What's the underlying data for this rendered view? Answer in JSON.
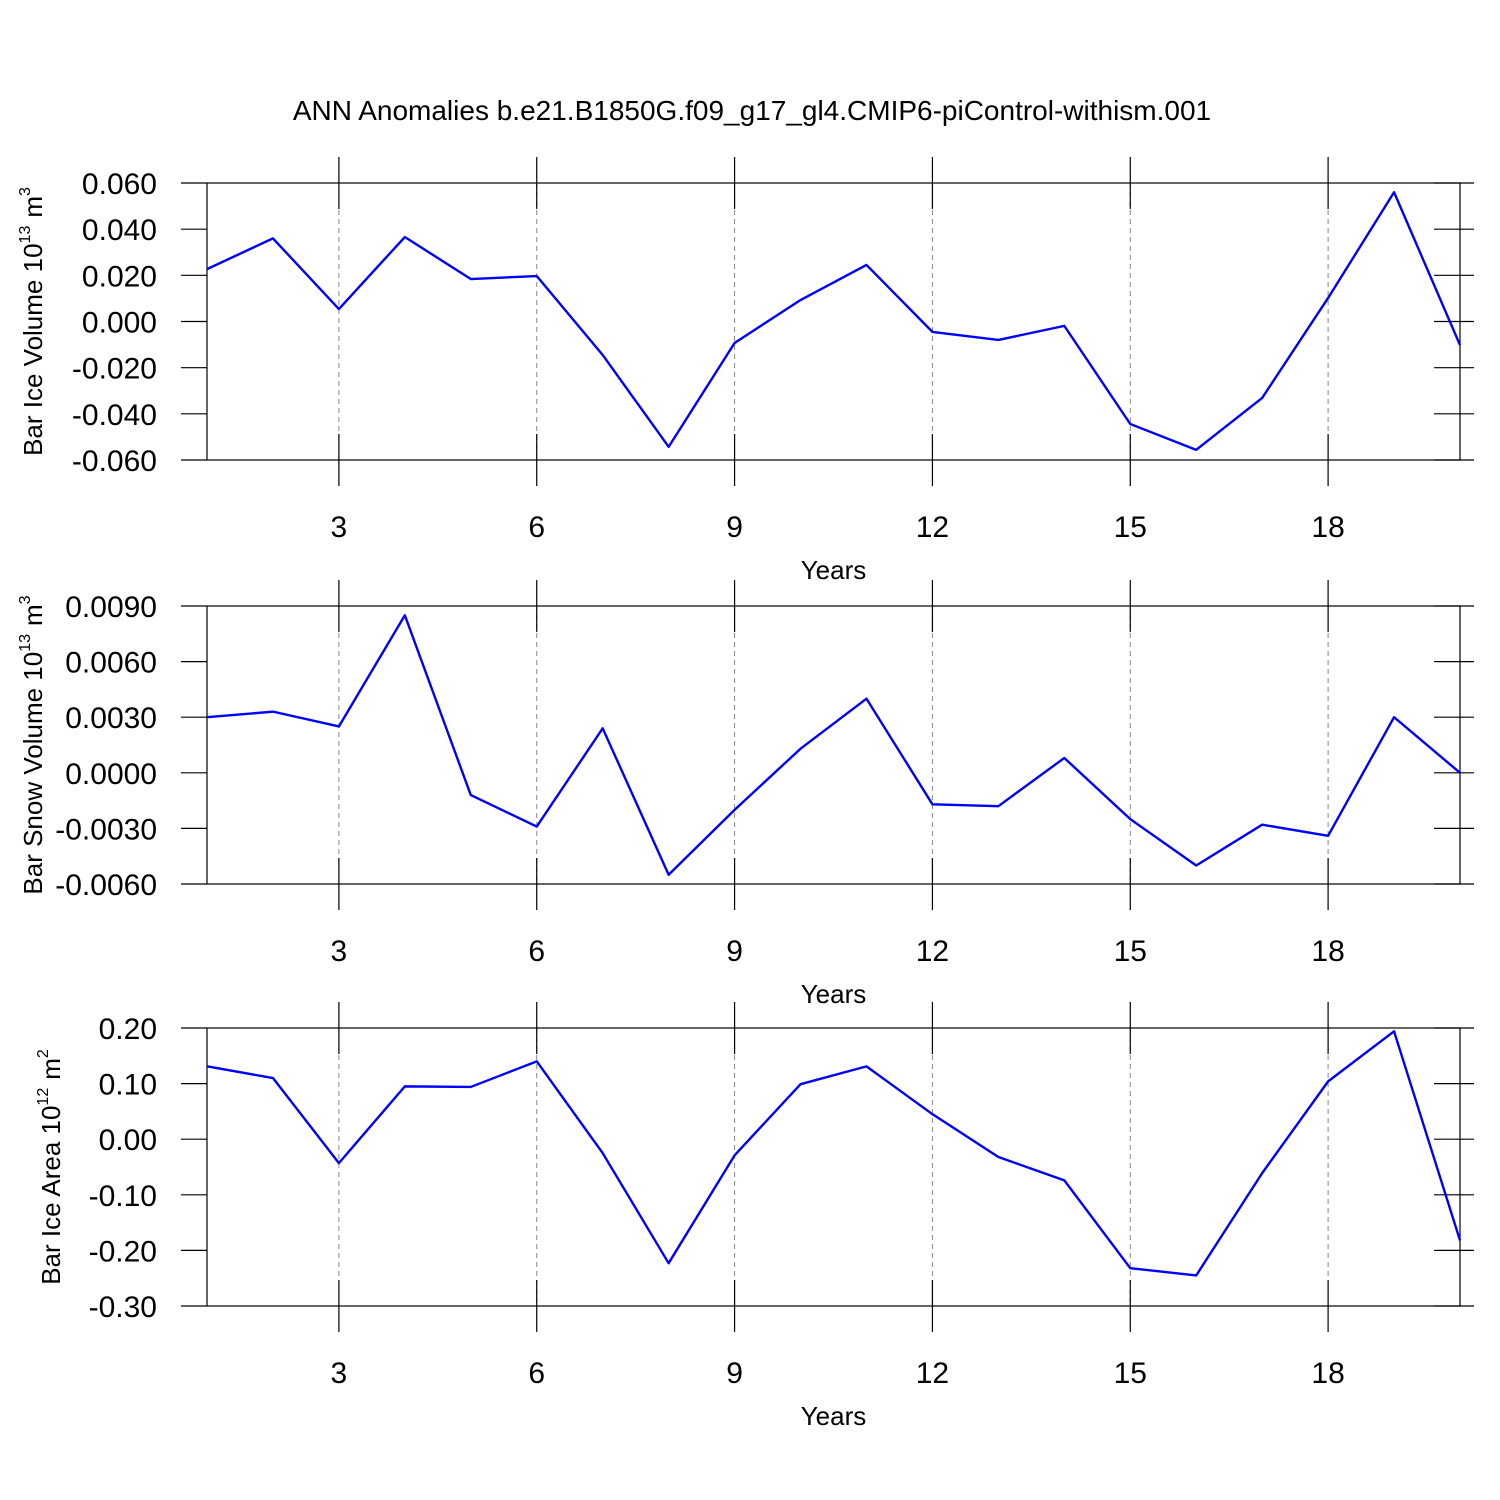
{
  "title": "ANN Anomalies b.e21.B1850G.f09_g17_gl4.CMIP6-piControl-withism.001",
  "chart_data": [
    {
      "type": "line",
      "ylabel": [
        "Bar Ice Volume 10",
        "13",
        "m",
        "3"
      ],
      "xlabel": "Years",
      "x": [
        1,
        2,
        3,
        4,
        5,
        6,
        7,
        8,
        9,
        10,
        11,
        12,
        13,
        14,
        15,
        16,
        17,
        18,
        19,
        20
      ],
      "series": [
        {
          "color": "#0000ff",
          "values": [
            0.0227,
            0.036,
            0.0054,
            0.0366,
            0.0184,
            0.0197,
            -0.0145,
            -0.0543,
            -0.0093,
            0.0093,
            0.0245,
            -0.0045,
            -0.008,
            -0.0019,
            -0.0444,
            -0.0556,
            -0.0331,
            0.0102,
            0.056,
            -0.0102
          ]
        }
      ],
      "xlim": [
        1,
        20
      ],
      "xticks": [
        3,
        6,
        9,
        12,
        15,
        18
      ],
      "ylim": [
        -0.06,
        0.06
      ],
      "yticks": [
        {
          "value": -0.06,
          "label": "-0.060"
        },
        {
          "value": -0.04,
          "label": "-0.040"
        },
        {
          "value": -0.02,
          "label": "-0.020"
        },
        {
          "value": 0,
          "label": "0.000"
        },
        {
          "value": 0.02,
          "label": "0.020"
        },
        {
          "value": 0.04,
          "label": "0.040"
        },
        {
          "value": 0.06,
          "label": "0.060"
        }
      ],
      "grid": true
    },
    {
      "type": "line",
      "ylabel": [
        "Bar Snow Volume 10",
        "13",
        "m",
        "3"
      ],
      "xlabel": "Years",
      "x": [
        1,
        2,
        3,
        4,
        5,
        6,
        7,
        8,
        9,
        10,
        11,
        12,
        13,
        14,
        15,
        16,
        17,
        18,
        19,
        20
      ],
      "series": [
        {
          "color": "#0000ff",
          "values": [
            0.003,
            0.0033,
            0.0025,
            0.0085,
            -0.0012,
            -0.0029,
            0.0024,
            -0.0055,
            -0.002,
            0.0013,
            0.004,
            -0.0017,
            -0.0018,
            0.0008,
            -0.0025,
            -0.005,
            -0.0028,
            -0.0034,
            0.003,
            0
          ]
        }
      ],
      "xlim": [
        1,
        20
      ],
      "xticks": [
        3,
        6,
        9,
        12,
        15,
        18
      ],
      "ylim": [
        -0.006,
        0.009
      ],
      "yticks": [
        {
          "value": -0.006,
          "label": "-0.0060"
        },
        {
          "value": -0.003,
          "label": "-0.0030"
        },
        {
          "value": 0,
          "label": "0.0000"
        },
        {
          "value": 0.003,
          "label": "0.0030"
        },
        {
          "value": 0.006,
          "label": "0.0060"
        },
        {
          "value": 0.009,
          "label": "0.0090"
        }
      ],
      "grid": true
    },
    {
      "type": "line",
      "ylabel": [
        "Bar Ice Area 10",
        "12",
        "m",
        "2"
      ],
      "xlabel": "Years",
      "x": [
        1,
        2,
        3,
        4,
        5,
        6,
        7,
        8,
        9,
        10,
        11,
        12,
        13,
        14,
        15,
        16,
        17,
        18,
        19,
        20
      ],
      "series": [
        {
          "color": "#0000ff",
          "values": [
            0.131,
            0.11,
            -0.043,
            0.095,
            0.094,
            0.14,
            -0.025,
            -0.223,
            -0.029,
            0.099,
            0.131,
            0.045,
            -0.032,
            -0.074,
            -0.232,
            -0.245,
            -0.061,
            0.104,
            0.194,
            -0.182
          ]
        }
      ],
      "xlim": [
        1,
        20
      ],
      "xticks": [
        3,
        6,
        9,
        12,
        15,
        18
      ],
      "ylim": [
        -0.3,
        0.2
      ],
      "yticks": [
        {
          "value": -0.3,
          "label": "-0.30"
        },
        {
          "value": -0.2,
          "label": "-0.20"
        },
        {
          "value": -0.1,
          "label": "-0.10"
        },
        {
          "value": 0,
          "label": "0.00"
        },
        {
          "value": 0.1,
          "label": "0.10"
        },
        {
          "value": 0.2,
          "label": "0.20"
        }
      ],
      "grid": true
    }
  ]
}
